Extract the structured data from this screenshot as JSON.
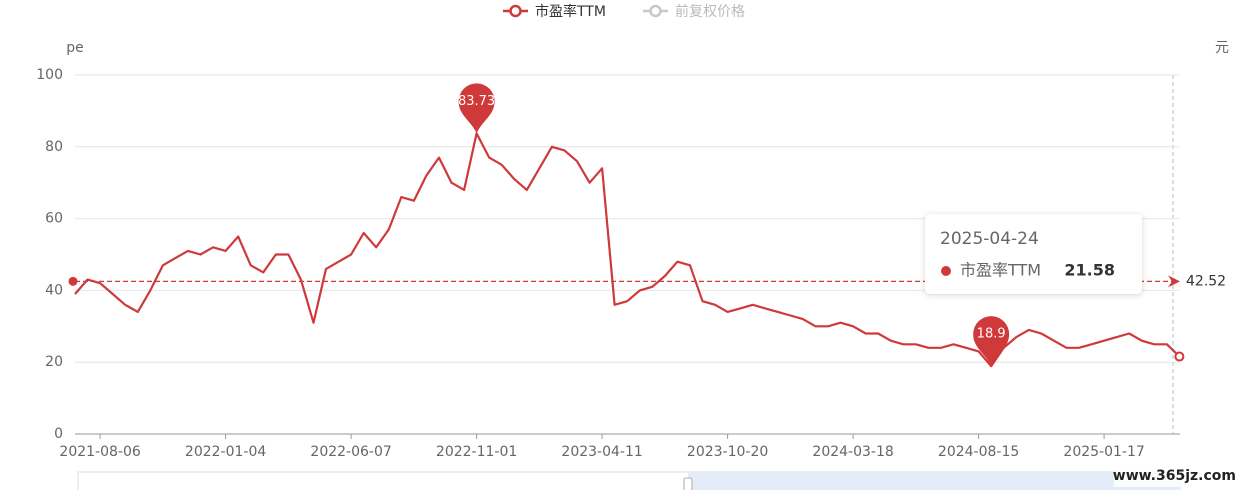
{
  "chart_data": {
    "type": "line",
    "y_axis_label": "pe",
    "y2_axis_label": "元",
    "categories": [
      null,
      null,
      "2021-08-06",
      null,
      null,
      null,
      null,
      null,
      null,
      null,
      null,
      null,
      "2022-01-04",
      null,
      null,
      null,
      null,
      null,
      null,
      null,
      null,
      null,
      "2022-06-07",
      null,
      null,
      null,
      null,
      null,
      null,
      null,
      null,
      null,
      "2022-11-01",
      null,
      null,
      null,
      null,
      null,
      null,
      null,
      null,
      null,
      "2023-04-11",
      null,
      null,
      null,
      null,
      null,
      null,
      null,
      null,
      null,
      "2023-10-20",
      null,
      null,
      null,
      null,
      null,
      null,
      null,
      null,
      null,
      "2024-03-18",
      null,
      null,
      null,
      null,
      null,
      null,
      null,
      null,
      null,
      "2024-08-15",
      null,
      null,
      null,
      null,
      null,
      null,
      null,
      null,
      null,
      "2025-01-17",
      null,
      null,
      null,
      null,
      null,
      null
    ],
    "series": [
      {
        "name": "市盈率TTM",
        "color": "#d0393a",
        "values": [
          39,
          43,
          42,
          39,
          36,
          34,
          40,
          47,
          49,
          51,
          50,
          52,
          51,
          55,
          47,
          45,
          50,
          50,
          43,
          31,
          46,
          48,
          50,
          56,
          52,
          57,
          66,
          65,
          72,
          77,
          70,
          68,
          83.73,
          77,
          75,
          71,
          68,
          74,
          80,
          79,
          76,
          70,
          74,
          36,
          37,
          40,
          41,
          44,
          48,
          47,
          37,
          36,
          34,
          35,
          36,
          35,
          34,
          33,
          32,
          30,
          30,
          31,
          30,
          28,
          28,
          26,
          25,
          25,
          24,
          24,
          25,
          24,
          23,
          18.9,
          24,
          27,
          29,
          28,
          26,
          24,
          24,
          25,
          26,
          27,
          28,
          26,
          25,
          25,
          21.58
        ]
      },
      {
        "name": "前复权价格",
        "color": "#c8c8c8",
        "hidden": true
      }
    ],
    "average_line": 42.52,
    "ylim": [
      0,
      100
    ],
    "yticks": [
      0,
      20,
      40,
      60,
      80,
      100
    ],
    "grid": true,
    "tooltip": {
      "date": "2025-04-24"
    },
    "watermark": "www.365jz.com"
  }
}
